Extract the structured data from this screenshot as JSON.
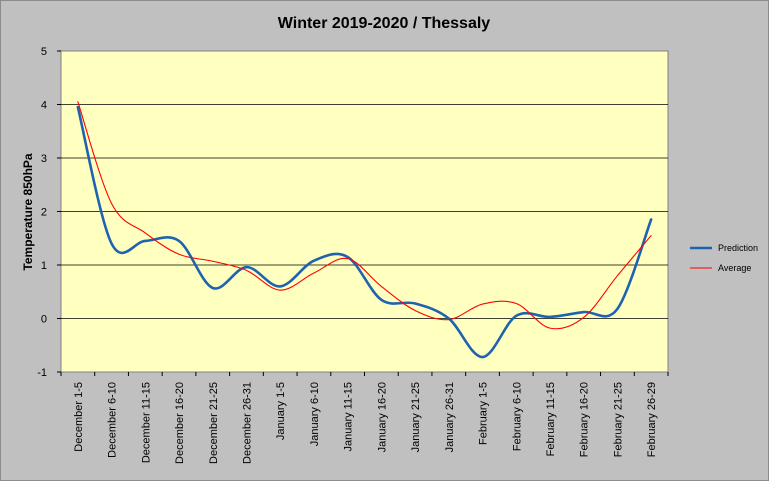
{
  "chart_data": {
    "type": "line",
    "title": "Winter 2019-2020 / Thessaly",
    "xlabel": "",
    "ylabel": "Temperature 850hPa",
    "ylim": [
      -1,
      5
    ],
    "yticks": [
      -1,
      0,
      1,
      2,
      3,
      4,
      5
    ],
    "grid": true,
    "legend_position": "right",
    "plot_background": "#ffffc0",
    "chart_background": "#c0c0c0",
    "categories": [
      "December 1-5",
      "December 6-10",
      "December 11-15",
      "December 16-20",
      "December 21-25",
      "December 26-31",
      "January 1-5",
      "January 6-10",
      "January 11-15",
      "January 16-20",
      "January 21-25",
      "January 26-31",
      "February 1-5",
      "February 6-10",
      "February 11-15",
      "February 16-20",
      "February 21-25",
      "February 26-29"
    ],
    "series": [
      {
        "name": "Prediction",
        "color": "#1f63b0",
        "values": [
          3.95,
          1.4,
          1.45,
          1.45,
          0.57,
          0.96,
          0.6,
          1.08,
          1.15,
          0.35,
          0.28,
          0.0,
          -0.72,
          0.05,
          0.03,
          0.12,
          0.18,
          1.85
        ]
      },
      {
        "name": "Average",
        "color": "#ff0000",
        "values": [
          4.05,
          2.15,
          1.6,
          1.2,
          1.07,
          0.9,
          0.53,
          0.85,
          1.12,
          0.6,
          0.15,
          -0.02,
          0.27,
          0.28,
          -0.18,
          0.02,
          0.8,
          1.55
        ]
      }
    ]
  }
}
